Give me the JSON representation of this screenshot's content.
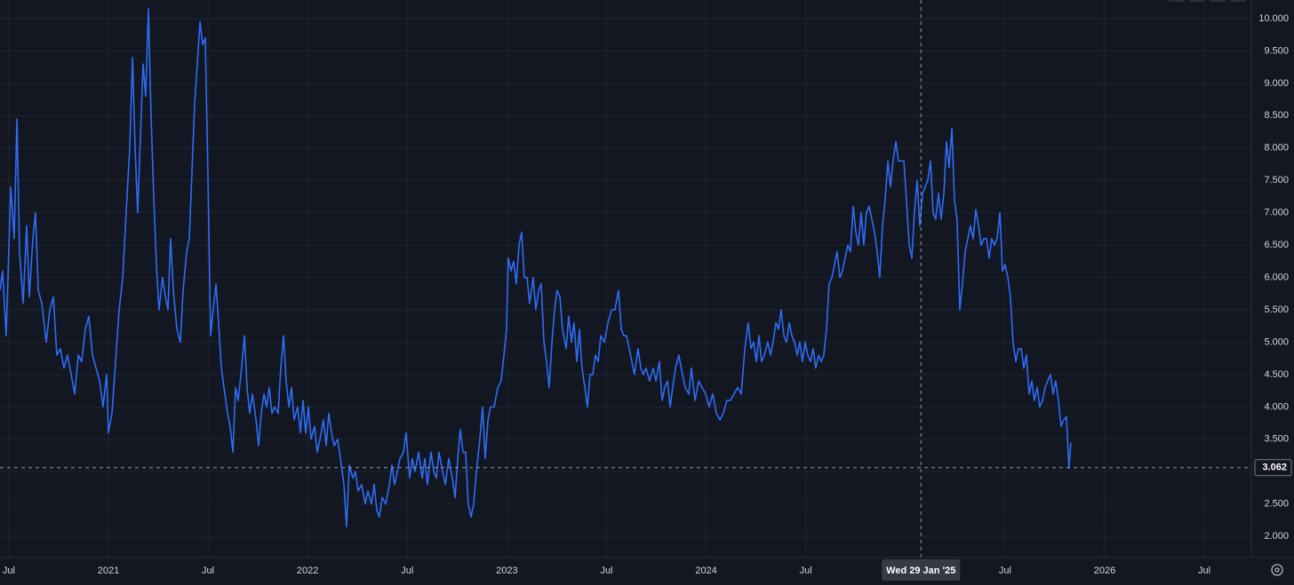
{
  "chart_data": {
    "type": "line",
    "color": "#2f6cf6",
    "grid": true,
    "xlim": [
      2020.456,
      2026.736
    ],
    "ylim": [
      1.673,
      10.288
    ],
    "xticks": [
      {
        "value": 2020.5,
        "label": "Jul"
      },
      2021,
      {
        "value": 2021.5,
        "label": "Jul"
      },
      2022,
      {
        "value": 2022.5,
        "label": "Jul"
      },
      2023,
      {
        "value": 2023.5,
        "label": "Jul"
      },
      2024,
      {
        "value": 2024.5,
        "label": "Jul"
      },
      {
        "value": 2025.5,
        "label": "Jul"
      },
      2026,
      {
        "value": 2026.5,
        "label": "Jul"
      }
    ],
    "yticks": [
      {
        "value": 2,
        "label": "2.000"
      },
      {
        "value": 2.5,
        "label": "2.500"
      },
      {
        "value": 3,
        "label": "3.000"
      },
      {
        "value": 3.5,
        "label": "3.500"
      },
      {
        "value": 4,
        "label": "4.000"
      },
      {
        "value": 4.5,
        "label": "4.500"
      },
      {
        "value": 5,
        "label": "5.000"
      },
      {
        "value": 5.5,
        "label": "5.500"
      },
      {
        "value": 6,
        "label": "6.000"
      },
      {
        "value": 6.5,
        "label": "6.500"
      },
      {
        "value": 7,
        "label": "7.000"
      },
      {
        "value": 7.5,
        "label": "7.500"
      },
      {
        "value": 8,
        "label": "8.000"
      },
      {
        "value": 8.5,
        "label": "8.500"
      },
      {
        "value": 9,
        "label": "9.000"
      },
      {
        "value": 9.5,
        "label": "9.500"
      },
      {
        "value": 10,
        "label": "10.000"
      }
    ],
    "crosshair": {
      "x": 2025.078,
      "x_label": "Wed 29 Jan '25",
      "y": 3.062,
      "y_label": "3.062"
    },
    "x": [
      2020.456,
      2020.469,
      2020.487,
      2020.51,
      2020.527,
      2020.541,
      2020.554,
      2020.572,
      2020.59,
      2020.603,
      2020.621,
      2020.634,
      2020.648,
      2020.666,
      2020.688,
      2020.706,
      2020.724,
      2020.741,
      2020.759,
      2020.777,
      2020.795,
      2020.813,
      2020.831,
      2020.849,
      2020.866,
      2020.884,
      2020.902,
      2020.92,
      2020.938,
      2020.956,
      2020.973,
      2020.991,
      2021.0,
      2021.018,
      2021.036,
      2021.054,
      2021.072,
      2021.089,
      2021.107,
      2021.121,
      2021.134,
      2021.147,
      2021.161,
      2021.174,
      2021.187,
      2021.201,
      2021.214,
      2021.228,
      2021.241,
      2021.254,
      2021.272,
      2021.286,
      2021.299,
      2021.312,
      2021.326,
      2021.344,
      2021.361,
      2021.375,
      2021.393,
      2021.406,
      2021.419,
      2021.433,
      2021.446,
      2021.46,
      2021.473,
      2021.486,
      2021.5,
      2021.513,
      2021.526,
      2021.54,
      2021.553,
      2021.567,
      2021.58,
      2021.598,
      2021.611,
      2021.625,
      2021.638,
      2021.651,
      2021.665,
      2021.683,
      2021.696,
      2021.709,
      2021.723,
      2021.741,
      2021.754,
      2021.767,
      2021.781,
      2021.794,
      2021.807,
      2021.821,
      2021.834,
      2021.852,
      2021.865,
      2021.879,
      2021.892,
      2021.906,
      2021.919,
      2021.932,
      2021.95,
      2021.964,
      2021.977,
      2021.99,
      2022.004,
      2022.017,
      2022.035,
      2022.048,
      2022.062,
      2022.079,
      2022.093,
      2022.106,
      2022.12,
      2022.133,
      2022.151,
      2022.169,
      2022.182,
      2022.195,
      2022.209,
      2022.227,
      2022.24,
      2022.253,
      2022.271,
      2022.289,
      2022.302,
      2022.32,
      2022.334,
      2022.347,
      2022.36,
      2022.374,
      2022.392,
      2022.41,
      2022.423,
      2022.436,
      2022.45,
      2022.463,
      2022.481,
      2022.494,
      2022.512,
      2022.525,
      2022.539,
      2022.557,
      2022.575,
      2022.588,
      2022.601,
      2022.619,
      2022.633,
      2022.646,
      2022.659,
      2022.677,
      2022.691,
      2022.708,
      2022.726,
      2022.74,
      2022.753,
      2022.766,
      2022.78,
      2022.793,
      2022.806,
      2022.82,
      2022.833,
      2022.847,
      2022.864,
      2022.878,
      2022.891,
      2022.905,
      2022.918,
      2022.936,
      2022.954,
      2022.971,
      2022.985,
      2022.998,
      2023.007,
      2023.021,
      2023.034,
      2023.047,
      2023.061,
      2023.074,
      2023.087,
      2023.101,
      2023.114,
      2023.132,
      2023.145,
      2023.159,
      2023.172,
      2023.186,
      2023.199,
      2023.212,
      2023.226,
      2023.239,
      2023.252,
      2023.266,
      2023.279,
      2023.297,
      2023.31,
      2023.324,
      2023.337,
      2023.351,
      2023.364,
      2023.377,
      2023.391,
      2023.404,
      2023.417,
      2023.431,
      2023.444,
      2023.458,
      2023.471,
      2023.489,
      2023.507,
      2023.525,
      2023.542,
      2023.56,
      2023.574,
      2023.587,
      2023.6,
      2023.614,
      2023.627,
      2023.64,
      2023.658,
      2023.672,
      2023.685,
      2023.698,
      2023.716,
      2023.734,
      2023.748,
      2023.765,
      2023.779,
      2023.792,
      2023.806,
      2023.819,
      2023.832,
      2023.846,
      2023.863,
      2023.881,
      2023.895,
      2023.913,
      2023.926,
      2023.944,
      2023.962,
      2023.979,
      2023.997,
      2024.015,
      2024.033,
      2024.051,
      2024.069,
      2024.086,
      2024.104,
      2024.122,
      2024.14,
      2024.158,
      2024.176,
      2024.194,
      2024.211,
      2024.225,
      2024.238,
      2024.252,
      2024.265,
      2024.278,
      2024.292,
      2024.309,
      2024.323,
      2024.336,
      2024.35,
      2024.363,
      2024.376,
      2024.39,
      2024.403,
      2024.417,
      2024.43,
      2024.443,
      2024.457,
      2024.47,
      2024.483,
      2024.497,
      2024.51,
      2024.524,
      2024.537,
      2024.55,
      2024.564,
      2024.577,
      2024.59,
      2024.604,
      2024.617,
      2024.631,
      2024.644,
      2024.657,
      2024.671,
      2024.684,
      2024.697,
      2024.711,
      2024.724,
      2024.738,
      2024.751,
      2024.764,
      2024.778,
      2024.791,
      2024.804,
      2024.818,
      2024.831,
      2024.845,
      2024.858,
      2024.871,
      2024.885,
      2024.898,
      2024.912,
      2024.925,
      2024.938,
      2024.952,
      2024.965,
      2024.978,
      2024.992,
      2025.005,
      2025.019,
      2025.032,
      2025.045,
      2025.059,
      2025.072,
      2025.086,
      2025.099,
      2025.112,
      2025.126,
      2025.139,
      2025.152,
      2025.166,
      2025.179,
      2025.193,
      2025.206,
      2025.219,
      2025.233,
      2025.246,
      2025.259,
      2025.273,
      2025.286,
      2025.3,
      2025.313,
      2025.326,
      2025.34,
      2025.353,
      2025.367,
      2025.38,
      2025.393,
      2025.407,
      2025.42,
      2025.433,
      2025.447,
      2025.46,
      2025.474,
      2025.487,
      2025.5,
      2025.514,
      2025.527,
      2025.54,
      2025.554,
      2025.567,
      2025.581,
      2025.594,
      2025.607,
      2025.621,
      2025.634,
      2025.647,
      2025.661,
      2025.674,
      2025.688,
      2025.701,
      2025.714,
      2025.728,
      2025.741,
      2025.754,
      2025.768,
      2025.781,
      2025.795,
      2025.808,
      2025.821,
      2025.83
    ],
    "values": [
      5.8,
      6.1,
      5.1,
      7.4,
      6.6,
      8.45,
      6.4,
      5.6,
      6.8,
      5.7,
      6.6,
      7.0,
      5.8,
      5.6,
      5.0,
      5.5,
      5.7,
      4.8,
      4.9,
      4.6,
      4.8,
      4.5,
      4.2,
      4.8,
      4.7,
      5.2,
      5.4,
      4.8,
      4.6,
      4.4,
      4.0,
      4.5,
      3.6,
      3.9,
      4.7,
      5.5,
      6.0,
      7.0,
      8.0,
      9.4,
      8.0,
      7.0,
      8.2,
      9.3,
      8.8,
      10.15,
      8.5,
      7.2,
      6.2,
      5.5,
      6.0,
      5.7,
      5.5,
      6.6,
      5.8,
      5.2,
      5.0,
      5.8,
      6.4,
      6.6,
      7.6,
      8.7,
      9.3,
      9.95,
      9.6,
      9.7,
      7.5,
      5.1,
      5.5,
      5.9,
      5.3,
      4.6,
      4.3,
      3.9,
      3.7,
      3.3,
      4.3,
      4.1,
      4.5,
      5.1,
      4.3,
      3.9,
      4.2,
      3.8,
      3.4,
      3.9,
      4.2,
      4.0,
      4.3,
      3.9,
      4.0,
      3.9,
      4.6,
      5.1,
      4.4,
      4.0,
      4.3,
      3.8,
      4.0,
      3.6,
      4.1,
      3.6,
      4.0,
      3.5,
      3.7,
      3.3,
      3.5,
      3.8,
      3.4,
      3.9,
      3.6,
      3.4,
      3.5,
      3.1,
      2.8,
      2.15,
      3.1,
      2.9,
      3.0,
      2.7,
      2.8,
      2.5,
      2.7,
      2.5,
      2.8,
      2.4,
      2.3,
      2.6,
      2.5,
      2.8,
      3.1,
      2.8,
      3.0,
      3.2,
      3.3,
      3.6,
      2.9,
      3.2,
      3.0,
      3.3,
      2.9,
      3.2,
      2.8,
      3.3,
      3.0,
      2.9,
      3.3,
      3.0,
      2.8,
      3.2,
      2.9,
      2.6,
      3.2,
      3.65,
      3.3,
      3.3,
      2.5,
      2.3,
      2.5,
      3.0,
      3.5,
      4.0,
      3.2,
      3.8,
      4.0,
      4.0,
      4.3,
      4.4,
      4.8,
      5.2,
      6.3,
      6.1,
      6.25,
      5.9,
      6.5,
      6.7,
      6.0,
      6.0,
      5.6,
      6.0,
      5.5,
      5.8,
      5.9,
      5.0,
      4.7,
      4.3,
      5.0,
      5.5,
      5.8,
      5.7,
      5.2,
      4.9,
      5.4,
      5.0,
      5.3,
      4.7,
      5.2,
      4.6,
      4.3,
      4.0,
      4.5,
      4.5,
      4.8,
      4.7,
      5.1,
      5.0,
      5.3,
      5.5,
      5.5,
      5.8,
      5.2,
      5.1,
      5.1,
      4.9,
      4.7,
      4.5,
      4.9,
      4.6,
      4.5,
      4.6,
      4.4,
      4.6,
      4.4,
      4.7,
      4.1,
      4.3,
      4.4,
      4.0,
      4.3,
      4.6,
      4.8,
      4.5,
      4.3,
      4.2,
      4.6,
      4.1,
      4.4,
      4.3,
      4.2,
      4.0,
      4.2,
      3.9,
      3.8,
      3.9,
      4.1,
      4.1,
      4.2,
      4.3,
      4.2,
      4.9,
      5.3,
      4.9,
      5.0,
      4.7,
      5.1,
      4.7,
      4.8,
      5.0,
      4.8,
      5.0,
      5.3,
      5.2,
      5.5,
      5.1,
      5.0,
      5.3,
      5.1,
      5.0,
      4.8,
      5.0,
      4.7,
      5.0,
      4.8,
      4.7,
      4.9,
      4.6,
      4.8,
      4.7,
      4.8,
      5.2,
      5.9,
      6.0,
      6.2,
      6.4,
      6.0,
      6.1,
      6.3,
      6.5,
      6.4,
      7.1,
      6.7,
      6.5,
      7.0,
      6.5,
      7.0,
      7.1,
      6.9,
      6.7,
      6.4,
      6.0,
      6.8,
      7.2,
      7.8,
      7.4,
      7.8,
      8.1,
      7.8,
      7.8,
      7.8,
      7.2,
      6.5,
      6.3,
      7.0,
      7.5,
      6.8,
      7.3,
      7.4,
      7.5,
      7.8,
      7.0,
      6.9,
      7.3,
      6.9,
      7.3,
      8.1,
      7.7,
      8.3,
      7.2,
      6.9,
      5.5,
      5.9,
      6.4,
      6.6,
      6.8,
      6.6,
      7.05,
      6.8,
      6.5,
      6.6,
      6.6,
      6.3,
      6.6,
      6.5,
      6.6,
      7.0,
      6.1,
      6.2,
      6.0,
      5.7,
      5.0,
      4.7,
      4.9,
      4.9,
      4.6,
      4.8,
      4.2,
      4.4,
      4.1,
      4.3,
      4.0,
      4.1,
      4.3,
      4.4,
      4.5,
      4.2,
      4.4,
      4.1,
      3.7,
      3.8,
      3.85,
      3.05,
      3.45
    ]
  }
}
